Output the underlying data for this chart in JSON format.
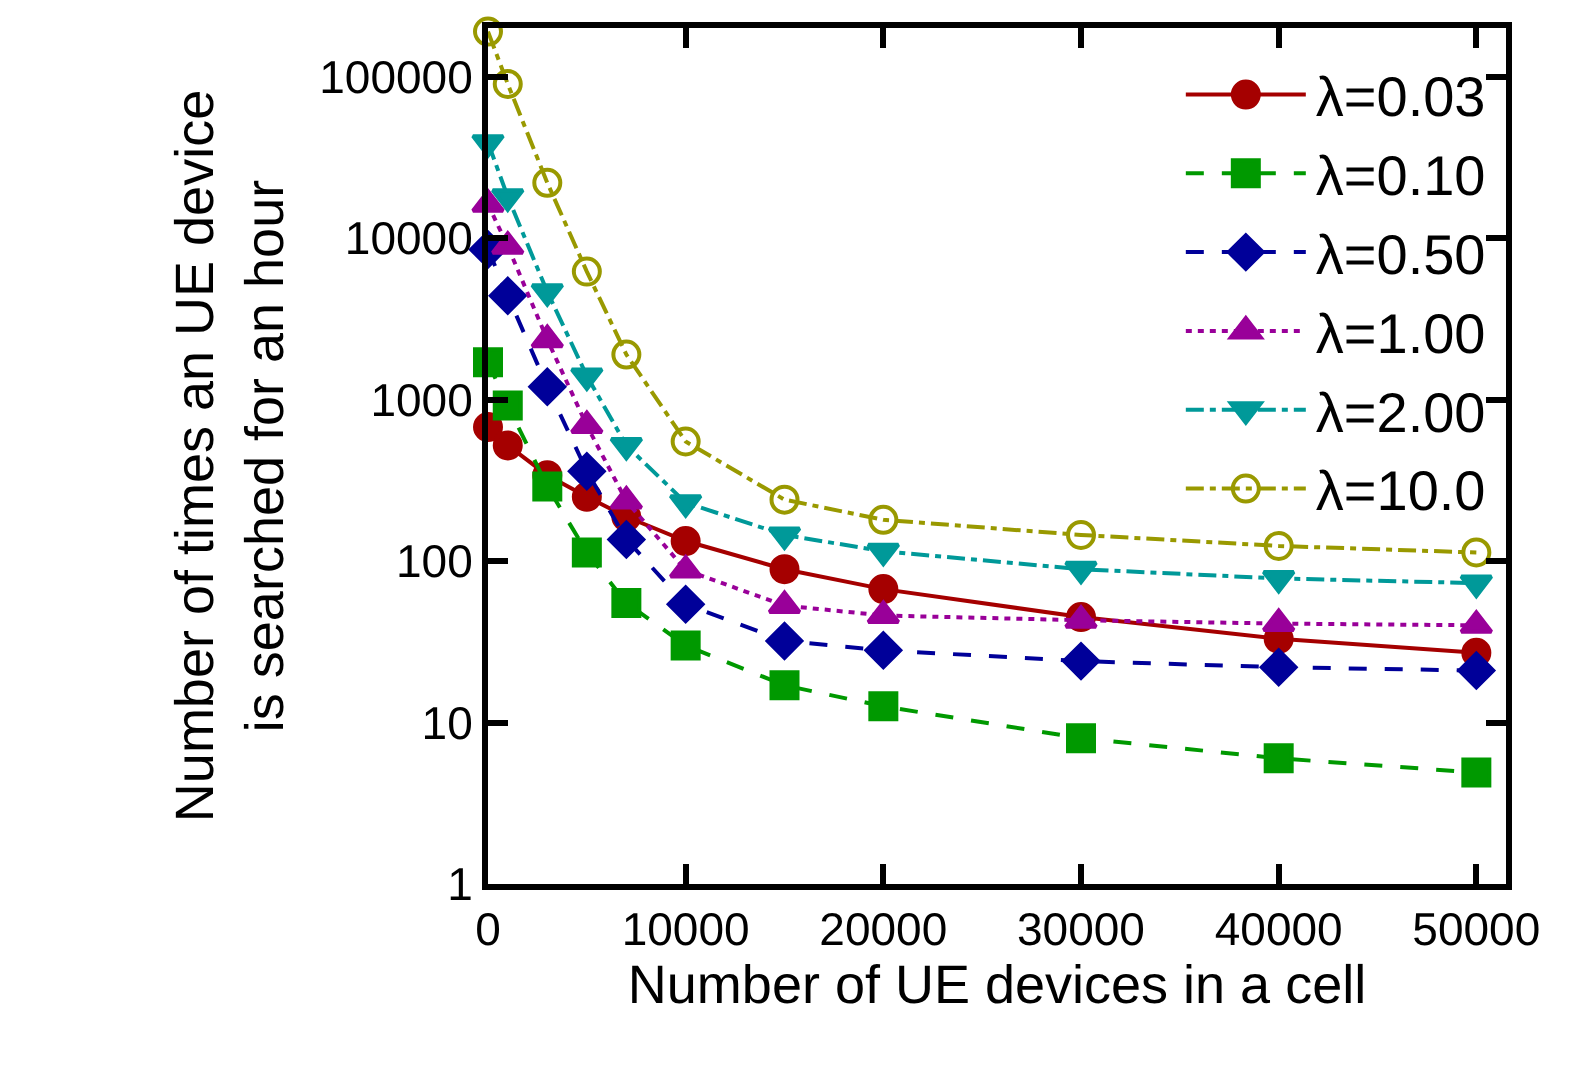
{
  "chart_data": {
    "type": "line",
    "xlabel": "Number of UE devices in a cell",
    "ylabel": "Number of times an UE device\nis searched for an hour",
    "x": [
      0,
      1000,
      3000,
      5000,
      7000,
      10000,
      15000,
      20000,
      30000,
      40000,
      50000
    ],
    "xlim": [
      0,
      51500
    ],
    "xticks": [
      0,
      10000,
      20000,
      30000,
      40000,
      50000
    ],
    "log": "y",
    "ylim": [
      1,
      200000
    ],
    "yticks": [
      1,
      10,
      100,
      1000,
      10000,
      100000
    ],
    "legend": "top right",
    "series": [
      {
        "name": "λ=0.03",
        "color": "#a50000",
        "marker": "circle",
        "line_style": "solid",
        "values": [
          675,
          520,
          340,
          250,
          188,
          133,
          89,
          67,
          45,
          33,
          27
        ]
      },
      {
        "name": "λ=0.10",
        "color": "#009900",
        "marker": "square",
        "line_style": "dashed",
        "values": [
          1700,
          920,
          290,
          113,
          55,
          30,
          17,
          12.6,
          8,
          6,
          4.9
        ]
      },
      {
        "name": "λ=0.50",
        "color": "#000099",
        "marker": "diamond",
        "line_style": "dashed",
        "values": [
          8500,
          4400,
          1200,
          360,
          136,
          54,
          32,
          28,
          24,
          22,
          21
        ]
      },
      {
        "name": "λ=1.00",
        "color": "#990099",
        "marker": "triangle",
        "line_style": "dotted",
        "values": [
          16200,
          8900,
          2350,
          690,
          235,
          88,
          53,
          46,
          43,
          41,
          40
        ]
      },
      {
        "name": "λ=2.00",
        "color": "#009999",
        "marker": "triangle-down",
        "line_style": "dashdot",
        "values": [
          39000,
          18000,
          4650,
          1400,
          520,
          230,
          145,
          115,
          89,
          78,
          73
        ]
      },
      {
        "name": "λ=10.0",
        "color": "#999900",
        "marker": "circle-open",
        "line_style": "dashdot",
        "values": [
          190000,
          90000,
          22000,
          6200,
          1900,
          550,
          240,
          180,
          145,
          124,
          113
        ]
      }
    ]
  }
}
